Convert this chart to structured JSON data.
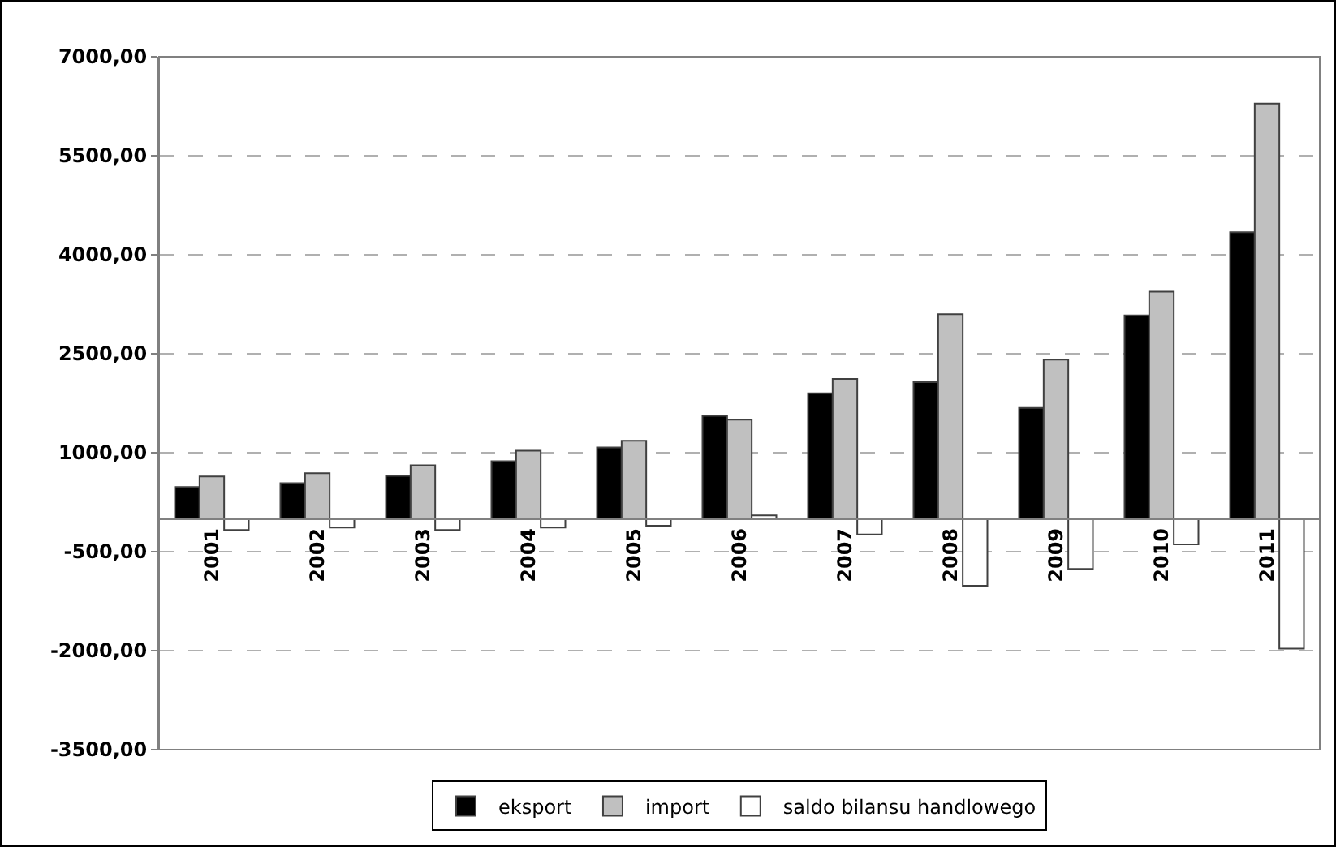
{
  "chart_data": {
    "type": "bar",
    "categories": [
      "2001",
      "2002",
      "2003",
      "2004",
      "2005",
      "2006",
      "2007",
      "2008",
      "2009",
      "2010",
      "2011"
    ],
    "series": [
      {
        "name": "eksport",
        "color": "#000000",
        "values": [
          480,
          540,
          650,
          870,
          1080,
          1560,
          1900,
          2070,
          1680,
          3080,
          4340
        ]
      },
      {
        "name": "import",
        "color": "#c0c0c0",
        "values": [
          640,
          690,
          810,
          1030,
          1180,
          1500,
          2120,
          3100,
          2410,
          3440,
          6290
        ]
      },
      {
        "name": "saldo bilansu handlowego",
        "color": "#ffffff",
        "values": [
          -170,
          -135,
          -170,
          -135,
          -105,
          50,
          -240,
          -1015,
          -760,
          -390,
          -1970
        ]
      }
    ],
    "ylim": [
      -3500,
      7000
    ],
    "yticks": [
      {
        "value": -3500,
        "label": "-3500,00"
      },
      {
        "value": -2000,
        "label": "-2000,00"
      },
      {
        "value": -500,
        "label": "-500,00"
      },
      {
        "value": 1000,
        "label": "1000,00"
      },
      {
        "value": 2500,
        "label": "2500,00"
      },
      {
        "value": 4000,
        "label": "4000,00"
      },
      {
        "value": 5500,
        "label": "5500,00"
      },
      {
        "value": 7000,
        "label": "7000,00"
      }
    ],
    "grid": "y",
    "legend": "bottom"
  }
}
